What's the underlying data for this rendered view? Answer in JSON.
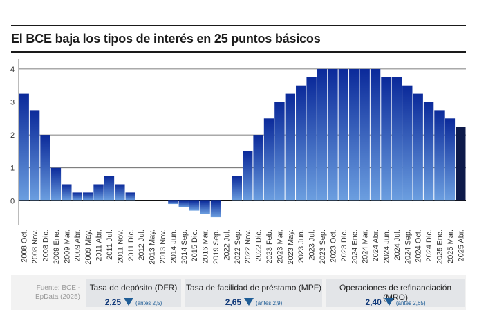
{
  "title": "El BCE baja los tipos de interés en 25 puntos básicos",
  "source": "Fuente: BCE - EpData (2025)",
  "cards": [
    {
      "label": "Tasa de depósito (DFR)",
      "value": "2,25",
      "prev": "(antes 2,5)"
    },
    {
      "label": "Tasa de facilidad de préstamo (MPF)",
      "value": "2,65",
      "prev": "(antes 2,9)"
    },
    {
      "label": "Operaciones de refinanciación (MRO)",
      "value": "2,40",
      "prev": "(antes 2,65)"
    }
  ],
  "colors": {
    "bar_top": "#0b2a9a",
    "bar_bottom": "#6c9fe0",
    "last_bar": "#0d1a4a",
    "arrow": "#1f5d96"
  },
  "chart_data": {
    "type": "bar",
    "title": "El BCE baja los tipos de interés en 25 puntos básicos",
    "xlabel": "",
    "ylabel": "",
    "ylim": [
      -0.75,
      4.25
    ],
    "yticks": [
      0,
      1,
      2,
      3,
      4
    ],
    "grid": true,
    "categories": [
      "2008 Oct.",
      "2008 Nov.",
      "2008 Dic.",
      "2009 Ene.",
      "2009 Mar.",
      "2009 Abr.",
      "2009 May.",
      "2011 Abr.",
      "2011 Jul.",
      "2011 Nov.",
      "2011 Dic.",
      "2012 Jul.",
      "2013 May.",
      "2013 Nov.",
      "2014 Jun.",
      "2014 Sep.",
      "2015 Dic.",
      "2016 Mar.",
      "2019 Sep.",
      "2022 Jul.",
      "2022 Sep.",
      "2022 Nov.",
      "2022 Dic.",
      "2023 Feb.",
      "2023 Mar.",
      "2023 May.",
      "2023 Jun.",
      "2023 Jul.",
      "2023 Sep.",
      "2023 Oct.",
      "2023 Dic.",
      "2024 Ene.",
      "2024 Mar.",
      "2024 Abr.",
      "2024 Jun.",
      "2024 Jul.",
      "2024 Sep.",
      "2024 Oct.",
      "2024 Dic.",
      "2025 Ene.",
      "2025 Mar.",
      "2025 Abr."
    ],
    "values": [
      3.25,
      2.75,
      2.0,
      1.0,
      0.5,
      0.25,
      0.25,
      0.5,
      0.75,
      0.5,
      0.25,
      0,
      0,
      0,
      -0.1,
      -0.2,
      -0.3,
      -0.4,
      -0.5,
      0,
      0.75,
      1.5,
      2.0,
      2.5,
      3.0,
      3.25,
      3.5,
      3.75,
      4.0,
      4.0,
      4.0,
      4.0,
      4.0,
      4.0,
      3.75,
      3.75,
      3.5,
      3.25,
      3.0,
      2.75,
      2.5,
      2.25
    ]
  }
}
